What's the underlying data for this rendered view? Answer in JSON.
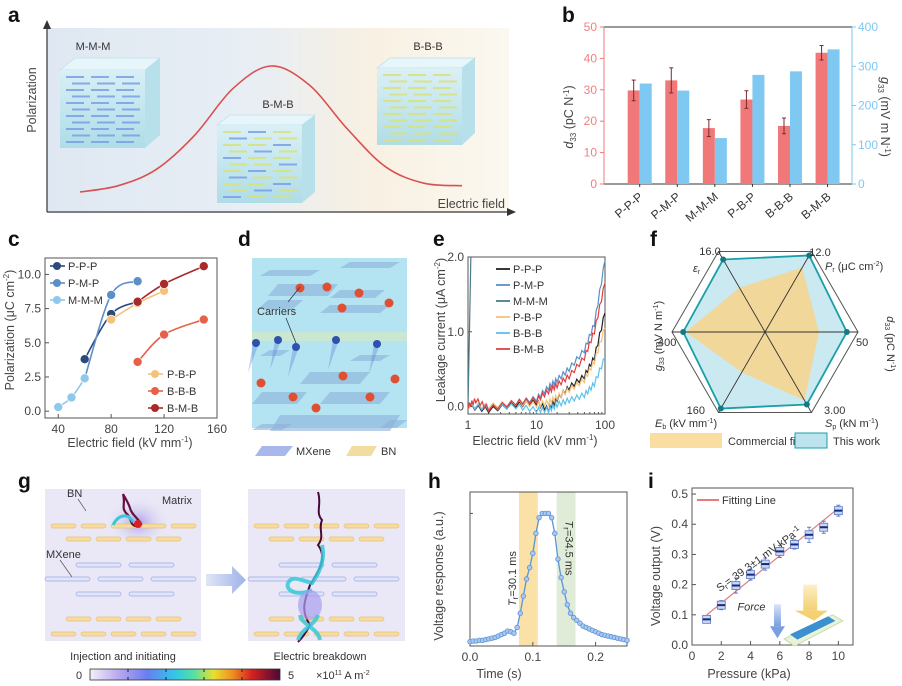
{
  "figure": {
    "panels": [
      "a",
      "b",
      "c",
      "d",
      "e",
      "f",
      "g",
      "h",
      "i"
    ]
  },
  "chart_data": [
    {
      "panel": "a",
      "type": "line",
      "title": "",
      "xlabel": "Electric field",
      "ylabel": "Polarization",
      "annotations": [
        "M-M-M",
        "B-M-B",
        "B-B-B"
      ],
      "curve": "bell-shaped (schematic)",
      "x": [
        0,
        0.1,
        0.2,
        0.3,
        0.4,
        0.5,
        0.6,
        0.7,
        0.8,
        0.9,
        1.0
      ],
      "y": [
        0.0,
        0.05,
        0.18,
        0.45,
        0.82,
        1.0,
        0.85,
        0.5,
        0.2,
        0.07,
        0.05
      ]
    },
    {
      "panel": "b",
      "type": "bar",
      "categories": [
        "P-P-P",
        "P-M-P",
        "M-M-M",
        "P-B-P",
        "B-B-B",
        "B-M-B"
      ],
      "series": [
        {
          "name": "d33 (pC N-1)",
          "axis": "left",
          "color": "#f07878",
          "values": [
            29.8,
            33.0,
            17.8,
            26.9,
            18.5,
            41.8
          ],
          "errors": [
            3.3,
            4.0,
            2.7,
            2.8,
            2.5,
            2.3
          ]
        },
        {
          "name": "g33 (mV m N-1)",
          "axis": "right",
          "color": "#7ec8f2",
          "values": [
            256,
            238,
            117,
            278,
            287,
            343
          ]
        }
      ],
      "ylabel": "d33 (pC N-1)",
      "ylabel_sub": "33",
      "y2label": "g33 (mV m N-1)",
      "ylim": [
        0,
        50
      ],
      "y2lim": [
        0,
        400
      ],
      "yticks": [
        "0",
        "10",
        "20",
        "30",
        "40",
        "50"
      ],
      "y2ticks": [
        "0",
        "100",
        "200",
        "300",
        "400"
      ]
    },
    {
      "panel": "c",
      "type": "line",
      "xlabel": "Electric field (kV mm-1)",
      "ylabel": "Polarization (μC cm-2)",
      "xlim": [
        30,
        160
      ],
      "ylim": [
        -0.5,
        11.2
      ],
      "xticks": [
        "40",
        "80",
        "120",
        "160"
      ],
      "yticks": [
        "0.0",
        "2.5",
        "5.0",
        "7.5",
        "10.0"
      ],
      "legend_top": [
        "P-P-P",
        "P-M-P",
        "M-M-M"
      ],
      "legend_bottom": [
        "P-B-P",
        "B-B-B",
        "B-M-B"
      ],
      "series": [
        {
          "name": "P-P-P",
          "color": "#2b4a7a",
          "x": [
            60,
            80,
            100
          ],
          "y": [
            3.8,
            7.1,
            8.0
          ]
        },
        {
          "name": "P-M-P",
          "color": "#5b8fc7",
          "x": [
            60,
            80,
            100
          ],
          "y": [
            2.4,
            8.5,
            9.5
          ]
        },
        {
          "name": "M-M-M",
          "color": "#8ec8ec",
          "x": [
            40,
            50,
            60
          ],
          "y": [
            0.3,
            1.0,
            2.4
          ]
        },
        {
          "name": "P-B-P",
          "color": "#f5c27a",
          "x": [
            80,
            100,
            120
          ],
          "y": [
            6.7,
            7.9,
            8.8
          ]
        },
        {
          "name": "B-B-B",
          "color": "#e8604a",
          "x": [
            100,
            120,
            150
          ],
          "y": [
            3.6,
            5.6,
            6.7
          ]
        },
        {
          "name": "B-M-B",
          "color": "#a82a2a",
          "x": [
            100,
            120,
            150
          ],
          "y": [
            8.0,
            9.3,
            10.6
          ]
        }
      ]
    },
    {
      "panel": "d",
      "type": "diagram",
      "labels": [
        "Carriers"
      ],
      "legend": [
        "MXene",
        "BN"
      ]
    },
    {
      "panel": "e",
      "type": "line",
      "xlabel": "Electric field (kV mm-1)",
      "ylabel": "Leakage current (μA cm-2)",
      "xscale": "log",
      "xlim": [
        1,
        100
      ],
      "ylim": [
        -0.1,
        2.0
      ],
      "xticks": [
        "1",
        "10",
        "100"
      ],
      "yticks": [
        "0.0",
        "1.0",
        "2.0"
      ],
      "series": [
        {
          "name": "P-P-P",
          "color": "#222222",
          "x": [
            1,
            2,
            5,
            10,
            15,
            20,
            30,
            50,
            70,
            100
          ],
          "y": [
            0.0,
            -0.05,
            0.02,
            0.05,
            -0.05,
            0.1,
            0.25,
            0.4,
            0.65,
            1.25
          ]
        },
        {
          "name": "P-M-P",
          "color": "#5b8fc7",
          "x": [
            1,
            2,
            5,
            10,
            15,
            20,
            30,
            50,
            70,
            100
          ],
          "y": [
            0.02,
            -0.03,
            0.05,
            0.1,
            0.25,
            0.35,
            0.5,
            0.75,
            1.1,
            1.95
          ]
        },
        {
          "name": "M-M-M",
          "color": "#4a7a8a",
          "x": [
            1,
            1.05,
            1.1
          ],
          "y": [
            0.0,
            1.0,
            2.0
          ]
        },
        {
          "name": "P-B-P",
          "color": "#f5c27a",
          "x": [
            1,
            2,
            5,
            10,
            15,
            20,
            30,
            50,
            70,
            100
          ],
          "y": [
            0.0,
            0.0,
            0.05,
            0.02,
            0.05,
            0.12,
            0.22,
            0.35,
            0.6,
            1.05
          ]
        },
        {
          "name": "B-B-B",
          "color": "#5fc0ea",
          "x": [
            1,
            2,
            5,
            10,
            15,
            20,
            30,
            50,
            70,
            100
          ],
          "y": [
            0.0,
            -0.02,
            0.0,
            -0.05,
            -0.05,
            0.02,
            0.08,
            0.15,
            0.3,
            0.65
          ]
        },
        {
          "name": "B-M-B",
          "color": "#e04040",
          "x": [
            1,
            1.3,
            2,
            5,
            10,
            15,
            20,
            30,
            50,
            70,
            100
          ],
          "y": [
            0.0,
            0.08,
            -0.03,
            0.05,
            0.08,
            0.2,
            0.28,
            0.4,
            0.65,
            1.0,
            1.65
          ]
        }
      ]
    },
    {
      "panel": "f",
      "type": "radar",
      "axes": [
        {
          "name": "εr",
          "max_label": "16.0"
        },
        {
          "name": "Pr (μC cm-2)",
          "max_label": "12.0"
        },
        {
          "name": "d33 (pC N-1)",
          "max_label": "50"
        },
        {
          "name": "Sp (kN m-1)",
          "max_label": "3.00"
        },
        {
          "name": "Eb (kV mm-1)",
          "max_label": "160"
        },
        {
          "name": "g33 (mV N m-1)",
          "max_label": "400"
        }
      ],
      "series": [
        {
          "name": "Commercial film",
          "color": "#f8d48a",
          "values": [
            0.55,
            0.8,
            0.58,
            0.85,
            0.5,
            0.85
          ]
        },
        {
          "name": "This work",
          "color": "#1a9fa8",
          "fill": "#bde3ee",
          "values": [
            0.9,
            0.95,
            0.88,
            0.9,
            0.95,
            0.88
          ]
        }
      ],
      "legend": [
        "Commercial film",
        "This work"
      ]
    },
    {
      "panel": "g",
      "type": "diagram",
      "labels": [
        "BN",
        "Matrix",
        "MXene"
      ],
      "captions": [
        "Injection and initiating",
        "Electric breakdown"
      ],
      "colorbar": {
        "min": "0",
        "max": "5",
        "unit": "×10¹¹ A m⁻²"
      }
    },
    {
      "panel": "h",
      "type": "line",
      "xlabel": "Time (s)",
      "ylabel": "Voltage response (a.u.)",
      "xlim": [
        0,
        0.25
      ],
      "ylim": [
        0,
        1.08
      ],
      "xticks": [
        "0.0",
        "0.1",
        "0.2"
      ],
      "annotations": [
        "Tr=30.1 ms",
        "Tr=34.5 ms"
      ],
      "rise_band": [
        0.078,
        0.108
      ],
      "fall_band": [
        0.138,
        0.168
      ],
      "series": [
        {
          "name": "response",
          "color": "#5b94d8",
          "x": [
            0,
            0.005,
            0.01,
            0.015,
            0.02,
            0.025,
            0.03,
            0.035,
            0.04,
            0.045,
            0.05,
            0.055,
            0.06,
            0.065,
            0.07,
            0.075,
            0.08,
            0.085,
            0.09,
            0.095,
            0.1,
            0.105,
            0.11,
            0.115,
            0.12,
            0.125,
            0.13,
            0.135,
            0.14,
            0.145,
            0.15,
            0.155,
            0.16,
            0.165,
            0.17,
            0.175,
            0.18,
            0.185,
            0.19,
            0.195,
            0.2,
            0.205,
            0.21,
            0.215,
            0.22,
            0.225,
            0.23,
            0.235,
            0.24,
            0.245,
            0.25
          ],
          "y": [
            0.1,
            0.105,
            0.105,
            0.11,
            0.11,
            0.115,
            0.12,
            0.125,
            0.13,
            0.14,
            0.15,
            0.16,
            0.175,
            0.17,
            0.16,
            0.2,
            0.3,
            0.42,
            0.54,
            0.62,
            0.72,
            0.86,
            0.97,
            1.0,
            1.0,
            1.0,
            0.97,
            0.86,
            0.68,
            0.55,
            0.45,
            0.36,
            0.3,
            0.27,
            0.25,
            0.23,
            0.21,
            0.2,
            0.19,
            0.18,
            0.17,
            0.16,
            0.15,
            0.145,
            0.14,
            0.135,
            0.13,
            0.125,
            0.12,
            0.115,
            0.11
          ]
        }
      ]
    },
    {
      "panel": "i",
      "type": "scatter",
      "xlabel": "Pressure (kPa)",
      "ylabel": "Voltage output (V)",
      "xlim": [
        0,
        11
      ],
      "ylim": [
        0,
        0.52
      ],
      "xticks": [
        "0",
        "2",
        "4",
        "6",
        "8",
        "10"
      ],
      "yticks": [
        "0.0",
        "0.1",
        "0.2",
        "0.3",
        "0.4",
        "0.5"
      ],
      "legend": [
        "Fitting Line"
      ],
      "annotations": [
        "Sr= 39.3±1 mV kPa-1",
        "Force"
      ],
      "fit": {
        "slope": 0.0393,
        "intercept": 0.06
      },
      "series": [
        {
          "name": "data",
          "color": "#2b4a9a",
          "x": [
            1,
            2,
            3,
            4,
            5,
            6,
            7,
            8,
            9,
            10
          ],
          "y": [
            0.085,
            0.132,
            0.197,
            0.233,
            0.268,
            0.31,
            0.333,
            0.365,
            0.39,
            0.445
          ],
          "errors": [
            0.012,
            0.015,
            0.025,
            0.018,
            0.02,
            0.02,
            0.015,
            0.025,
            0.02,
            0.018
          ]
        }
      ]
    }
  ],
  "text": {
    "a": {
      "label": "a",
      "ylabel": "Polarization",
      "xlabel": "Electric field",
      "mmm": "M-M-M",
      "bmb": "B-M-B",
      "bbb": "B-B-B"
    },
    "b": {
      "label": "b",
      "ylabel_d": "d",
      "ylabel_sub": "33",
      "ylabel_rest": " (pC N",
      "ylabel_sup": "-1",
      "ylabel_end": ")",
      "y2label_g": "g",
      "y2label_rest": " (mV m N",
      "y2label_sup": "-1",
      "y2label_end": ")"
    },
    "c": {
      "label": "c",
      "xlabel": "Electric field (kV mm",
      "xlabel_sup": "-1",
      "xlabel_end": ")",
      "ylabel": "Polarization (μC cm",
      "ylabel_sup": "-2",
      "ylabel_end": ")"
    },
    "d": {
      "label": "d",
      "carriers": "Carriers",
      "mxene": "MXene",
      "bn": "BN"
    },
    "e": {
      "label": "e",
      "xlabel": "Electric field (kV mm",
      "xlabel_sup": "-1",
      "xlabel_end": ")",
      "ylabel": "Leakage current (μA cm",
      "ylabel_sup": "-2",
      "ylabel_end": ")"
    },
    "f": {
      "label": "f",
      "er": "ε",
      "er_sub": "r",
      "pr": "P",
      "pr_sub": "r",
      "pr_unit": " (μC cm",
      "pr_sup": "-2",
      "pr_end": ")",
      "d33": "d",
      "d33_rest": " (pC N",
      "eb": "E",
      "eb_sub": "b",
      "eb_unit": " (kV mm",
      "sp": "S",
      "sp_sub": "p",
      "sp_unit": " (kN m",
      "g33": "g",
      "g33_rest": " (mV N m",
      "v16": "16.0",
      "v12": "12.0",
      "v50": "50",
      "v3": "3.00",
      "v160": "160",
      "v400": "400",
      "leg1": "Commercial film",
      "leg2": "This work"
    },
    "g": {
      "label": "g",
      "bn": "BN",
      "matrix": "Matrix",
      "mxene": "MXene",
      "cap1": "Injection and initiating",
      "cap2": "Electric breakdown",
      "cb_min": "0",
      "cb_max": "5",
      "cb_unit": "×10",
      "cb_exp": "11",
      "cb_unit2": " A m",
      "cb_exp2": "-2"
    },
    "h": {
      "label": "h",
      "xlabel": "Time (s)",
      "ylabel": "Voltage response (a.u.)",
      "tr1": "=30.1 ms",
      "tr2": "=34.5 ms",
      "T": "T",
      "r": "r"
    },
    "i": {
      "label": "i",
      "xlabel": "Pressure (kPa)",
      "ylabel": "Voltage output (V)",
      "fit": "Fitting Line",
      "sr": "S",
      "sr_sub": "r",
      "sr_rest": "= 39.3±1 mV kPa",
      "sr_sup": "-1",
      "force": "Force"
    }
  }
}
